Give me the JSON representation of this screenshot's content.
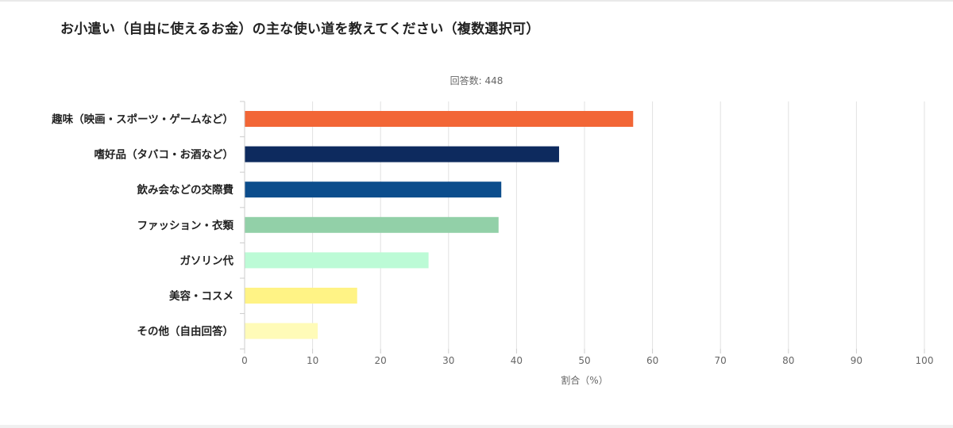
{
  "title": "お小遣い（自由に使えるお金）の主な使い道を教えてください（複数選択可）",
  "chart_data": {
    "type": "bar",
    "orientation": "horizontal",
    "respondents_label": "回答数: 448",
    "categories": [
      "趣味（映画・スポーツ・ゲームなど）",
      "嗜好品（タバコ・お酒など）",
      "飲み会などの交際費",
      "ファッション・衣類",
      "ガソリン代",
      "美容・コスメ",
      "その他（自由回答）"
    ],
    "values": [
      57.1,
      46.2,
      37.7,
      37.3,
      27.0,
      16.5,
      10.7
    ],
    "colors": [
      "#f26636",
      "#0d2a5e",
      "#0c4d8c",
      "#92d0a8",
      "#bcfbd6",
      "#fff385",
      "#fffbb8"
    ],
    "xlabel": "割合（%）",
    "xlim": [
      0,
      100
    ],
    "ticks": [
      "0",
      "10",
      "20",
      "30",
      "40",
      "50",
      "60",
      "70",
      "80",
      "90",
      "100"
    ],
    "grid": true
  }
}
